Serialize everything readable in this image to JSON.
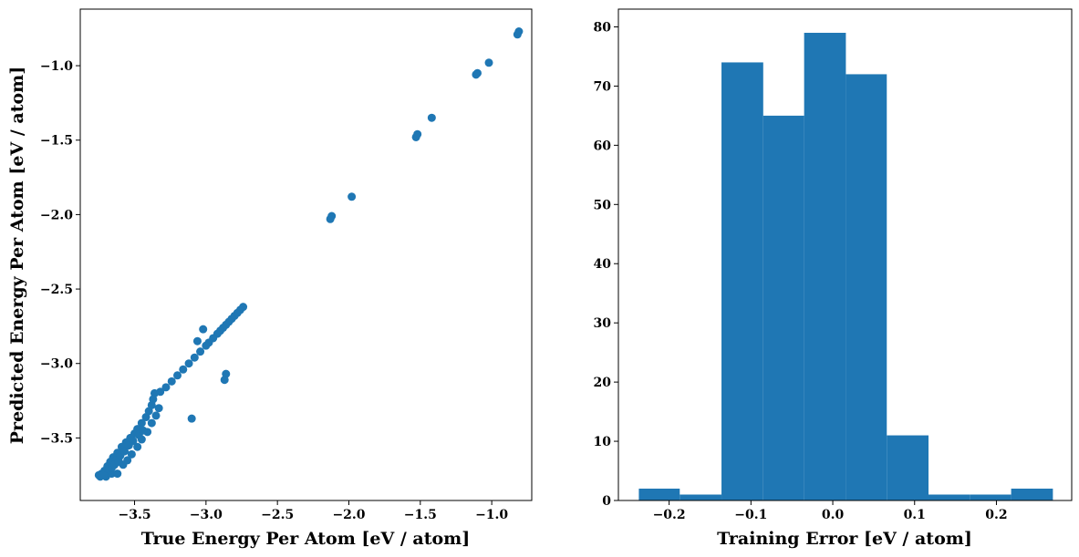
{
  "chart_data": [
    {
      "type": "scatter",
      "xlabel": "True Energy Per Atom [eV / atom]",
      "ylabel": "Predicted Energy Per Atom [eV / atom]",
      "xlim": [
        -3.88,
        -0.72
      ],
      "ylim": [
        -3.92,
        -0.62
      ],
      "xticks": [
        {
          "v": -3.5,
          "label": "−3.5"
        },
        {
          "v": -3.0,
          "label": "−3.0"
        },
        {
          "v": -2.5,
          "label": "−2.5"
        },
        {
          "v": -2.0,
          "label": "−2.0"
        },
        {
          "v": -1.5,
          "label": "−1.5"
        },
        {
          "v": -1.0,
          "label": "−1.0"
        }
      ],
      "yticks": [
        {
          "v": -3.5,
          "label": "−3.5"
        },
        {
          "v": -3.0,
          "label": "−3.0"
        },
        {
          "v": -2.5,
          "label": "−2.5"
        },
        {
          "v": -2.0,
          "label": "−2.0"
        },
        {
          "v": -1.5,
          "label": "−1.5"
        },
        {
          "v": -1.0,
          "label": "−1.0"
        }
      ],
      "color": "#1f77b4",
      "points": [
        [
          -0.81,
          -0.77
        ],
        [
          -0.82,
          -0.79
        ],
        [
          -1.02,
          -0.98
        ],
        [
          -1.1,
          -1.05
        ],
        [
          -1.11,
          -1.06
        ],
        [
          -1.42,
          -1.35
        ],
        [
          -1.52,
          -1.46
        ],
        [
          -1.53,
          -1.48
        ],
        [
          -1.98,
          -1.88
        ],
        [
          -2.12,
          -2.01
        ],
        [
          -2.13,
          -2.03
        ],
        [
          -2.74,
          -2.62
        ],
        [
          -2.76,
          -2.64
        ],
        [
          -2.78,
          -2.66
        ],
        [
          -2.8,
          -2.68
        ],
        [
          -2.82,
          -2.7
        ],
        [
          -2.84,
          -2.72
        ],
        [
          -2.86,
          -2.74
        ],
        [
          -2.88,
          -2.76
        ],
        [
          -2.9,
          -2.78
        ],
        [
          -2.92,
          -2.8
        ],
        [
          -2.95,
          -2.83
        ],
        [
          -2.98,
          -2.86
        ],
        [
          -3.0,
          -2.88
        ],
        [
          -3.02,
          -2.77
        ],
        [
          -3.06,
          -2.85
        ],
        [
          -3.04,
          -2.92
        ],
        [
          -3.08,
          -2.96
        ],
        [
          -3.12,
          -3.0
        ],
        [
          -3.16,
          -3.04
        ],
        [
          -3.2,
          -3.08
        ],
        [
          -3.24,
          -3.12
        ],
        [
          -3.28,
          -3.16
        ],
        [
          -3.32,
          -3.19
        ],
        [
          -3.36,
          -3.2
        ],
        [
          -3.37,
          -3.24
        ],
        [
          -3.38,
          -3.28
        ],
        [
          -2.86,
          -3.07
        ],
        [
          -2.87,
          -3.11
        ],
        [
          -3.1,
          -3.37
        ],
        [
          -3.4,
          -3.32
        ],
        [
          -3.42,
          -3.36
        ],
        [
          -3.45,
          -3.4
        ],
        [
          -3.48,
          -3.44
        ],
        [
          -3.5,
          -3.47
        ],
        [
          -3.53,
          -3.5
        ],
        [
          -3.56,
          -3.53
        ],
        [
          -3.59,
          -3.56
        ],
        [
          -3.62,
          -3.6
        ],
        [
          -3.65,
          -3.63
        ],
        [
          -3.67,
          -3.66
        ],
        [
          -3.69,
          -3.69
        ],
        [
          -3.71,
          -3.72
        ],
        [
          -3.73,
          -3.74
        ],
        [
          -3.74,
          -3.76
        ],
        [
          -3.75,
          -3.75
        ],
        [
          -3.7,
          -3.76
        ],
        [
          -3.66,
          -3.74
        ],
        [
          -3.62,
          -3.74
        ],
        [
          -3.58,
          -3.68
        ],
        [
          -3.55,
          -3.65
        ],
        [
          -3.52,
          -3.61
        ],
        [
          -3.48,
          -3.56
        ],
        [
          -3.45,
          -3.51
        ],
        [
          -3.41,
          -3.46
        ],
        [
          -3.38,
          -3.4
        ],
        [
          -3.35,
          -3.35
        ],
        [
          -3.33,
          -3.3
        ],
        [
          -3.63,
          -3.65
        ],
        [
          -3.6,
          -3.62
        ],
        [
          -3.57,
          -3.59
        ],
        [
          -3.54,
          -3.55
        ],
        [
          -3.51,
          -3.52
        ],
        [
          -3.47,
          -3.48
        ],
        [
          -3.44,
          -3.45
        ],
        [
          -3.68,
          -3.71
        ],
        [
          -3.72,
          -3.75
        ],
        [
          -3.66,
          -3.7
        ],
        [
          -3.64,
          -3.68
        ],
        [
          -3.61,
          -3.66
        ]
      ]
    },
    {
      "type": "bar",
      "xlabel": "Training Error [eV / atom]",
      "ylabel": "",
      "xlim": [
        -0.262,
        0.292
      ],
      "ylim": [
        0,
        83
      ],
      "xticks": [
        {
          "v": -0.2,
          "label": "−0.2"
        },
        {
          "v": -0.1,
          "label": "−0.1"
        },
        {
          "v": 0.0,
          "label": "0.0"
        },
        {
          "v": 0.1,
          "label": "0.1"
        },
        {
          "v": 0.2,
          "label": "0.2"
        }
      ],
      "yticks": [
        {
          "v": 0,
          "label": "0"
        },
        {
          "v": 10,
          "label": "10"
        },
        {
          "v": 20,
          "label": "20"
        },
        {
          "v": 30,
          "label": "30"
        },
        {
          "v": 40,
          "label": "40"
        },
        {
          "v": 50,
          "label": "50"
        },
        {
          "v": 60,
          "label": "60"
        },
        {
          "v": 70,
          "label": "70"
        },
        {
          "v": 80,
          "label": "80"
        }
      ],
      "color": "#1f77b4",
      "bins": [
        {
          "x0": -0.237,
          "x1": -0.187,
          "value": 2
        },
        {
          "x0": -0.187,
          "x1": -0.136,
          "value": 1
        },
        {
          "x0": -0.136,
          "x1": -0.085,
          "value": 74
        },
        {
          "x0": -0.085,
          "x1": -0.035,
          "value": 65
        },
        {
          "x0": -0.035,
          "x1": 0.016,
          "value": 79
        },
        {
          "x0": 0.016,
          "x1": 0.066,
          "value": 72
        },
        {
          "x0": 0.066,
          "x1": 0.117,
          "value": 11
        },
        {
          "x0": 0.117,
          "x1": 0.168,
          "value": 1
        },
        {
          "x0": 0.168,
          "x1": 0.218,
          "value": 1
        },
        {
          "x0": 0.218,
          "x1": 0.269,
          "value": 2
        }
      ]
    }
  ]
}
